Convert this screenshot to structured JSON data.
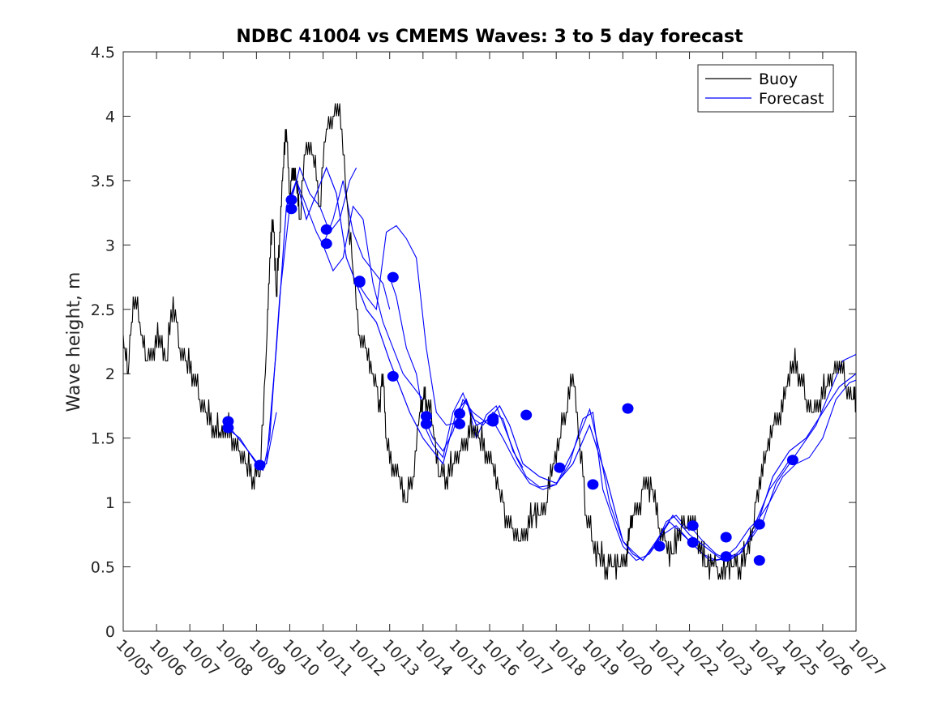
{
  "chart_data": {
    "type": "line",
    "title": "NDBC 41004 vs CMEMS Waves: 3 to 5 day forecast",
    "xlabel": "",
    "ylabel": "Wave height, m",
    "xlim": [
      0,
      22
    ],
    "ylim": [
      0,
      4.5
    ],
    "yticks": [
      "0",
      "0.5",
      "1",
      "1.5",
      "2",
      "2.5",
      "3",
      "3.5",
      "4",
      "4.5"
    ],
    "xtick_labels": [
      "10/05",
      "10/06",
      "10/07",
      "10/08",
      "10/09",
      "10/10",
      "10/11",
      "10/12",
      "10/13",
      "10/14",
      "10/15",
      "10/16",
      "10/17",
      "10/18",
      "10/19",
      "10/20",
      "10/21",
      "10/22",
      "10/23",
      "10/24",
      "10/25",
      "10/26",
      "10/27"
    ],
    "legend": {
      "position": "top-right",
      "entries": [
        "Buoy",
        "Forecast"
      ]
    },
    "colors": {
      "buoy": "#000000",
      "forecast": "#0000ff"
    },
    "series": [
      {
        "name": "Buoy",
        "x": [
          0,
          0.15,
          0.3,
          0.5,
          0.7,
          0.9,
          1.1,
          1.3,
          1.5,
          1.7,
          1.9,
          2.1,
          2.3,
          2.5,
          2.7,
          2.9,
          3.1,
          3.3,
          3.5,
          3.7,
          3.9,
          4.1,
          4.3,
          4.4,
          4.5,
          4.6,
          4.7,
          4.8,
          4.9,
          5.0,
          5.1,
          5.2,
          5.3,
          5.5,
          5.7,
          5.9,
          6.1,
          6.3,
          6.5,
          6.7,
          6.9,
          7.1,
          7.3,
          7.5,
          7.7,
          7.8,
          7.9,
          8.1,
          8.3,
          8.5,
          8.7,
          8.9,
          9.0,
          9.1,
          9.3,
          9.5,
          9.7,
          9.9,
          10.1,
          10.3,
          10.5,
          10.7,
          10.9,
          11.1,
          11.3,
          11.5,
          11.7,
          11.9,
          12.1,
          12.3,
          12.5,
          12.7,
          12.9,
          13.1,
          13.3,
          13.5,
          13.7,
          13.9,
          14.1,
          14.3,
          14.5,
          14.7,
          14.9,
          15.1,
          15.2,
          15.3,
          15.5,
          15.7,
          15.9,
          16.1,
          16.3,
          16.5,
          16.7,
          16.9,
          17.1,
          17.3,
          17.5,
          17.7,
          17.9,
          18.1,
          18.3,
          18.5,
          18.7,
          18.9,
          19.1,
          19.3,
          19.5,
          19.7,
          19.9,
          20.1,
          20.3,
          20.5,
          20.7,
          20.9,
          21.1,
          21.3,
          21.5,
          21.7,
          21.9,
          22.0
        ],
        "values": [
          2.3,
          2.0,
          2.6,
          2.4,
          2.1,
          2.2,
          2.3,
          2.1,
          2.6,
          2.2,
          2.1,
          2.0,
          1.8,
          1.7,
          1.6,
          1.55,
          1.6,
          1.5,
          1.4,
          1.3,
          1.2,
          1.2,
          2.2,
          2.9,
          3.2,
          2.6,
          3.1,
          3.6,
          3.9,
          3.4,
          3.6,
          3.5,
          3.2,
          3.8,
          3.7,
          3.3,
          3.9,
          4.0,
          4.1,
          3.4,
          2.8,
          2.3,
          2.2,
          2.0,
          1.8,
          2.0,
          1.5,
          1.3,
          1.2,
          1.0,
          1.2,
          1.7,
          1.8,
          1.8,
          1.6,
          1.2,
          1.2,
          1.3,
          1.4,
          1.5,
          1.6,
          1.5,
          1.4,
          1.3,
          1.1,
          0.9,
          0.8,
          0.7,
          0.8,
          0.9,
          0.9,
          1.0,
          1.3,
          1.5,
          1.7,
          2.0,
          1.5,
          0.9,
          0.7,
          0.6,
          0.5,
          0.5,
          0.5,
          0.6,
          0.8,
          0.9,
          1.0,
          1.2,
          1.1,
          0.8,
          0.7,
          0.6,
          0.8,
          0.8,
          0.9,
          0.7,
          0.5,
          0.55,
          0.45,
          0.5,
          0.5,
          0.5,
          0.6,
          0.8,
          1.2,
          1.4,
          1.6,
          1.7,
          1.9,
          2.1,
          2.0,
          1.8,
          1.7,
          1.8,
          1.9,
          2.0,
          2.1,
          1.9,
          1.8,
          1.8
        ]
      },
      {
        "name": "Forecast",
        "x": [
          3.0,
          3.5,
          4.0,
          4.3,
          4.6,
          4.9,
          5.2,
          5.5,
          5.8,
          6.1,
          6.4,
          6.7,
          7.0,
          7.3,
          7.6,
          8.0,
          8.3,
          8.6,
          9.0,
          9.3,
          9.6,
          10.0,
          10.3,
          10.6,
          11.0,
          11.3,
          11.6,
          12.0,
          12.5,
          13.0,
          13.5,
          14.0,
          14.5,
          15.0,
          15.3,
          15.6,
          16.0,
          16.5,
          17.0,
          17.5,
          18.0,
          18.5,
          19.0,
          19.5,
          20.0,
          20.5,
          21.0,
          21.5,
          22.0
        ],
        "values": [
          1.6,
          1.5,
          1.3,
          1.3,
          2.2,
          3.3,
          3.5,
          3.2,
          3.4,
          3.6,
          3.4,
          2.9,
          2.7,
          2.5,
          2.4,
          2.1,
          1.9,
          1.7,
          1.5,
          1.4,
          1.3,
          1.7,
          1.8,
          1.6,
          1.65,
          1.75,
          1.6,
          1.3,
          1.2,
          1.15,
          1.3,
          1.6,
          1.2,
          0.7,
          0.6,
          0.55,
          0.7,
          0.9,
          0.75,
          0.65,
          0.55,
          0.6,
          0.8,
          1.2,
          1.4,
          1.5,
          1.7,
          1.9,
          2.0
        ]
      }
    ],
    "forecast_runs": [
      {
        "x": [
          3.0,
          3.3,
          3.6,
          3.9,
          4.1,
          4.3,
          4.6
        ],
        "values": [
          1.62,
          1.55,
          1.45,
          1.35,
          1.28,
          1.3,
          1.7
        ]
      },
      {
        "x": [
          4.0,
          4.2,
          4.4,
          4.7,
          5.0,
          5.3,
          5.6,
          5.9,
          6.2,
          6.5,
          6.8,
          7.0
        ],
        "values": [
          1.28,
          1.25,
          1.5,
          2.6,
          3.3,
          3.6,
          3.4,
          3.3,
          3.1,
          3.2,
          3.5,
          3.6
        ]
      },
      {
        "x": [
          5.0,
          5.2,
          5.5,
          5.8,
          6.0,
          6.3,
          6.6,
          6.9,
          7.2,
          7.5,
          7.8,
          8.0
        ],
        "values": [
          3.35,
          3.5,
          3.3,
          3.1,
          3.0,
          3.2,
          3.5,
          3.1,
          2.9,
          2.8,
          2.7,
          2.5
        ]
      },
      {
        "x": [
          6.0,
          6.3,
          6.6,
          6.9,
          7.2,
          7.5,
          7.8,
          8.1,
          8.4,
          8.7,
          9.0
        ],
        "values": [
          3.0,
          2.8,
          2.9,
          3.3,
          3.2,
          2.7,
          2.4,
          2.2,
          2.0,
          1.9,
          1.8
        ]
      },
      {
        "x": [
          7.0,
          7.3,
          7.6,
          7.9,
          8.2,
          8.5,
          8.8,
          9.1,
          9.4,
          9.7,
          10.0
        ],
        "values": [
          2.72,
          2.6,
          2.5,
          3.1,
          3.15,
          3.05,
          2.9,
          2.2,
          1.7,
          1.6,
          1.62
        ]
      },
      {
        "x": [
          8.0,
          8.2,
          8.5,
          8.8,
          9.0,
          9.3,
          9.6,
          9.9,
          10.2,
          10.5,
          11.0
        ],
        "values": [
          2.75,
          2.6,
          2.2,
          2.0,
          1.68,
          1.5,
          1.4,
          1.55,
          1.8,
          1.7,
          1.6
        ]
      },
      {
        "x": [
          9.0,
          9.3,
          9.6,
          9.9,
          10.2,
          10.5,
          10.8,
          11.1,
          11.4,
          11.7,
          12.0
        ],
        "values": [
          1.62,
          1.45,
          1.35,
          1.7,
          1.85,
          1.65,
          1.6,
          1.7,
          1.65,
          1.4,
          1.27
        ]
      },
      {
        "x": [
          10.0,
          10.3,
          10.6,
          10.9,
          11.2,
          11.5,
          11.8,
          12.1,
          12.5,
          13.0,
          13.5,
          14.0
        ],
        "values": [
          1.62,
          1.8,
          1.5,
          1.68,
          1.75,
          1.55,
          1.35,
          1.2,
          1.12,
          1.14,
          1.4,
          1.72
        ]
      },
      {
        "x": [
          11.0,
          11.4,
          11.8,
          12.2,
          12.6,
          13.0,
          13.4,
          13.8,
          14.1,
          14.4,
          14.8,
          15.0
        ],
        "values": [
          1.68,
          1.5,
          1.3,
          1.15,
          1.1,
          1.14,
          1.3,
          1.65,
          1.7,
          1.1,
          0.8,
          0.66
        ]
      },
      {
        "x": [
          14.0,
          14.3,
          14.6,
          15.0,
          15.3,
          15.6,
          16.0,
          16.3,
          16.6,
          17.0
        ],
        "values": [
          1.73,
          1.4,
          1.0,
          0.7,
          0.62,
          0.55,
          0.68,
          0.85,
          0.9,
          0.78
        ]
      },
      {
        "x": [
          15.0,
          15.4,
          15.8,
          16.2,
          16.6,
          17.0,
          17.4,
          17.8,
          18.0
        ],
        "values": [
          0.66,
          0.55,
          0.6,
          0.75,
          0.82,
          0.7,
          0.6,
          0.55,
          0.56
        ]
      },
      {
        "x": [
          16.0,
          16.4,
          16.8,
          17.2,
          17.6,
          18.0,
          18.4,
          18.8,
          19.0
        ],
        "values": [
          0.69,
          0.85,
          0.75,
          0.65,
          0.55,
          0.56,
          0.65,
          0.8,
          0.85
        ]
      },
      {
        "x": [
          17.0,
          17.4,
          17.8,
          18.2,
          18.6,
          19.0,
          19.4,
          19.8,
          20.0
        ],
        "values": [
          0.82,
          0.7,
          0.6,
          0.55,
          0.62,
          0.85,
          1.1,
          1.25,
          1.33
        ]
      },
      {
        "x": [
          18.0,
          18.4,
          18.8,
          19.2,
          19.6,
          20.0,
          20.4,
          20.8,
          21.2,
          21.6,
          22.0
        ],
        "values": [
          0.56,
          0.6,
          0.7,
          0.85,
          1.15,
          1.3,
          1.45,
          1.6,
          1.85,
          2.1,
          2.15
        ]
      },
      {
        "x": [
          19.0,
          19.4,
          19.8,
          20.2,
          20.6,
          21.0,
          21.4,
          21.8,
          22.0
        ],
        "values": [
          0.84,
          1.0,
          1.2,
          1.3,
          1.35,
          1.5,
          1.8,
          1.93,
          1.95
        ]
      }
    ],
    "forecast_markers": {
      "x": [
        3.15,
        3.15,
        4.1,
        5.05,
        5.05,
        6.1,
        6.1,
        7.1,
        7.1,
        8.1,
        8.1,
        9.1,
        9.1,
        10.1,
        10.1,
        11.1,
        11.1,
        12.1,
        13.1,
        14.1,
        15.15,
        16.1,
        17.1,
        17.1,
        18.1,
        18.1,
        19.1,
        19.1,
        20.1
      ],
      "values": [
        1.63,
        1.58,
        1.29,
        3.35,
        3.28,
        3.12,
        3.01,
        2.72,
        2.71,
        2.75,
        1.98,
        1.67,
        1.61,
        1.69,
        1.61,
        1.65,
        1.63,
        1.68,
        1.27,
        1.14,
        1.73,
        0.66,
        0.69,
        0.82,
        0.73,
        0.58,
        0.55,
        0.83,
        1.33
      ]
    }
  }
}
